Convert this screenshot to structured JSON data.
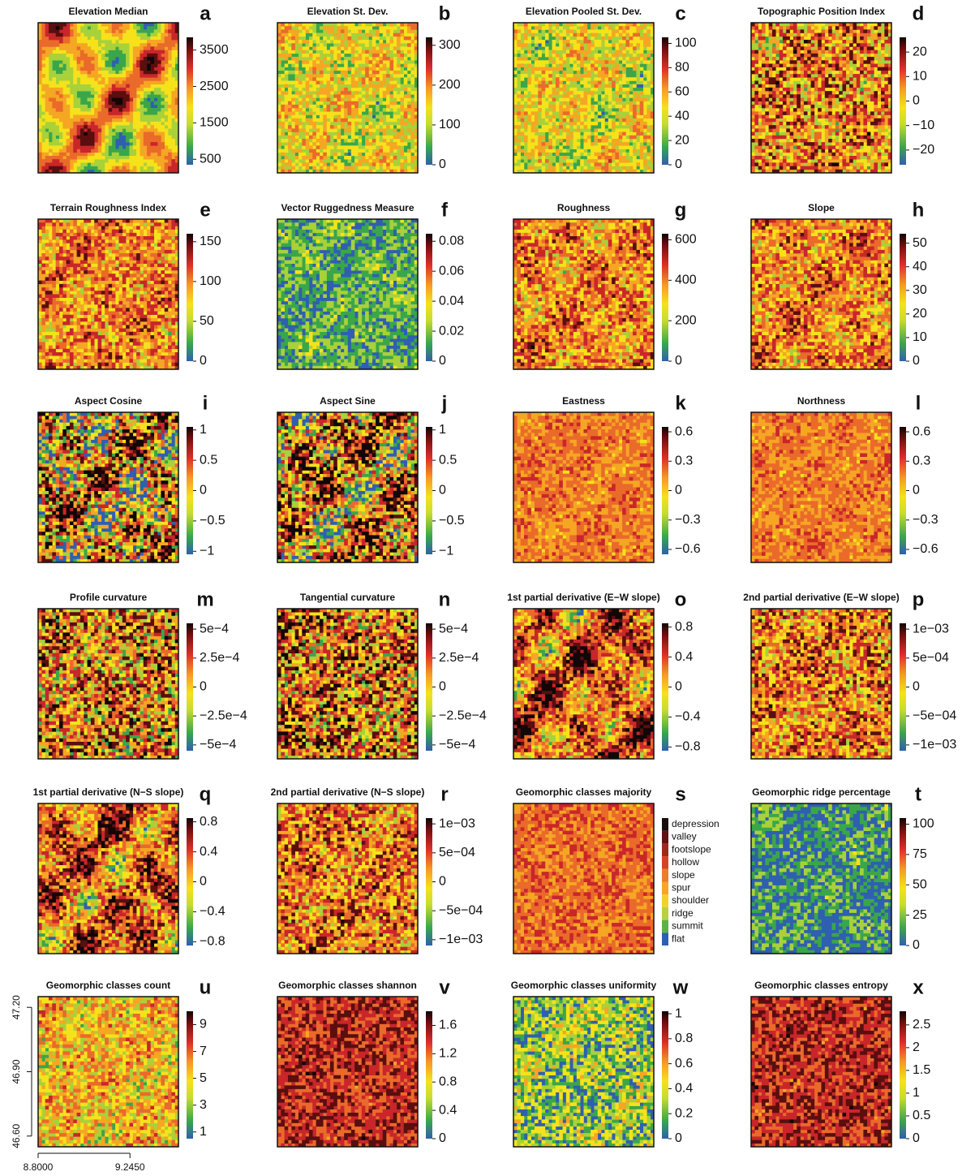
{
  "panels": [
    {
      "title": "Elevation Median",
      "letter": "a",
      "colorbar": {
        "lim": [
          350,
          3850
        ],
        "ticks": [
          500,
          1500,
          2500,
          3500
        ]
      }
    },
    {
      "title": "Elevation St. Dev.",
      "letter": "b",
      "colorbar": {
        "lim": [
          0,
          320
        ],
        "ticks": [
          0,
          100,
          200,
          300
        ]
      }
    },
    {
      "title": "Elevation Pooled St. Dev.",
      "letter": "c",
      "colorbar": {
        "lim": [
          0,
          105
        ],
        "ticks": [
          0,
          20,
          40,
          60,
          80,
          100
        ]
      }
    },
    {
      "title": "Topographic Position Index",
      "letter": "d",
      "colorbar": {
        "lim": [
          -26,
          26
        ],
        "ticks": [
          {
            "value": -20,
            "label": "−20"
          },
          {
            "value": -10,
            "label": "−10"
          },
          0,
          10,
          20
        ]
      }
    },
    {
      "title": "Terrain Roughness Index",
      "letter": "e",
      "colorbar": {
        "lim": [
          0,
          160
        ],
        "ticks": [
          0,
          50,
          100,
          150
        ]
      }
    },
    {
      "title": "Vector Ruggedness Measure",
      "letter": "f",
      "colorbar": {
        "lim": [
          0,
          0.085
        ],
        "ticks": [
          0,
          0.02,
          0.04,
          0.06,
          0.08
        ]
      }
    },
    {
      "title": "Roughness",
      "letter": "g",
      "colorbar": {
        "lim": [
          0,
          630
        ],
        "ticks": [
          0,
          200,
          400,
          600
        ]
      }
    },
    {
      "title": "Slope",
      "letter": "h",
      "colorbar": {
        "lim": [
          0,
          54
        ],
        "ticks": [
          0,
          10,
          20,
          30,
          40,
          50
        ]
      }
    },
    {
      "title": "Aspect Cosine",
      "letter": "i",
      "colorbar": {
        "lim": [
          -1.05,
          1.05
        ],
        "ticks": [
          {
            "value": -1,
            "label": "−1"
          },
          {
            "value": -0.5,
            "label": "−0.5"
          },
          0,
          0.5,
          1
        ]
      }
    },
    {
      "title": "Aspect Sine",
      "letter": "j",
      "colorbar": {
        "lim": [
          -1.05,
          1.05
        ],
        "ticks": [
          {
            "value": -1,
            "label": "−1"
          },
          {
            "value": -0.5,
            "label": "−0.5"
          },
          0,
          0.5,
          1
        ]
      }
    },
    {
      "title": "Eastness",
      "letter": "k",
      "colorbar": {
        "lim": [
          -0.65,
          0.65
        ],
        "ticks": [
          {
            "value": -0.6,
            "label": "−0.6"
          },
          {
            "value": -0.3,
            "label": "−0.3"
          },
          0,
          0.3,
          0.6
        ]
      }
    },
    {
      "title": "Northness",
      "letter": "l",
      "colorbar": {
        "lim": [
          -0.65,
          0.65
        ],
        "ticks": [
          {
            "value": -0.6,
            "label": "−0.6"
          },
          {
            "value": -0.3,
            "label": "−0.3"
          },
          0,
          0.3,
          0.6
        ]
      }
    },
    {
      "title": "Profile curvature",
      "letter": "m",
      "colorbar": {
        "lim": [
          -0.00055,
          0.00055
        ],
        "ticks": [
          {
            "value": -0.0005,
            "label": "−5e−4"
          },
          {
            "value": -0.00025,
            "label": "−2.5e−4"
          },
          0,
          {
            "value": 0.00025,
            "label": "2.5e−4"
          },
          {
            "value": 0.0005,
            "label": "5e−4"
          }
        ]
      }
    },
    {
      "title": "Tangential curvature",
      "letter": "n",
      "colorbar": {
        "lim": [
          -0.00055,
          0.00055
        ],
        "ticks": [
          {
            "value": -0.0005,
            "label": "−5e−4"
          },
          {
            "value": -0.00025,
            "label": "−2.5e−4"
          },
          0,
          {
            "value": 0.00025,
            "label": "2.5e−4"
          },
          {
            "value": 0.0005,
            "label": "5e−4"
          }
        ]
      }
    },
    {
      "title": "1st partial derivative (E−W slope)",
      "letter": "o",
      "colorbar": {
        "lim": [
          -0.85,
          0.85
        ],
        "ticks": [
          {
            "value": -0.8,
            "label": "−0.8"
          },
          {
            "value": -0.4,
            "label": "−0.4"
          },
          0,
          0.4,
          0.8
        ]
      }
    },
    {
      "title": "2nd partial derivative (E−W slope)",
      "letter": "p",
      "colorbar": {
        "lim": [
          -0.0011,
          0.0011
        ],
        "ticks": [
          {
            "value": -0.001,
            "label": "−1e−03"
          },
          {
            "value": -0.0005,
            "label": "−5e−04"
          },
          0,
          {
            "value": 0.0005,
            "label": "5e−04"
          },
          {
            "value": 0.001,
            "label": "1e−03"
          }
        ]
      }
    },
    {
      "title": "1st partial derivative (N−S slope)",
      "letter": "q",
      "colorbar": {
        "lim": [
          -0.85,
          0.85
        ],
        "ticks": [
          {
            "value": -0.8,
            "label": "−0.8"
          },
          {
            "value": -0.4,
            "label": "−0.4"
          },
          0,
          0.4,
          0.8
        ]
      }
    },
    {
      "title": "2nd partial derivative (N−S slope)",
      "letter": "r",
      "colorbar": {
        "lim": [
          -0.0011,
          0.0011
        ],
        "ticks": [
          {
            "value": -0.001,
            "label": "−1e−03"
          },
          {
            "value": -0.0005,
            "label": "−5e−04"
          },
          0,
          {
            "value": 0.0005,
            "label": "5e−04"
          },
          {
            "value": 0.001,
            "label": "1e−03"
          }
        ]
      }
    },
    {
      "title": "Geomorphic classes majority",
      "letter": "s",
      "legend": {
        "classes": [
          "depression",
          "valley",
          "footslope",
          "hollow",
          "slope",
          "spur",
          "shoulder",
          "ridge",
          "summit",
          "flat"
        ],
        "colors": [
          "#1a0a0a",
          "#5e1414",
          "#9c2a1e",
          "#d9402a",
          "#ef7a2a",
          "#f5a623",
          "#f2d22a",
          "#b9d23a",
          "#5fb04a",
          "#2f5fb0"
        ]
      }
    },
    {
      "title": "Geomorphic ridge percentage",
      "letter": "t",
      "colorbar": {
        "lim": [
          0,
          105
        ],
        "ticks": [
          0,
          25,
          50,
          75,
          100
        ]
      }
    },
    {
      "title": "Geomorphic classes count",
      "letter": "u",
      "colorbar": {
        "lim": [
          0.5,
          10
        ],
        "ticks": [
          1,
          3,
          5,
          7,
          9
        ]
      },
      "axes": {
        "xlim": [
          8.8,
          9.48
        ],
        "xticks": [
          {
            "value": 8.8,
            "label": "8.8000"
          },
          {
            "value": 9.245,
            "label": "9.2450"
          }
        ],
        "ylim": [
          46.55,
          47.25
        ],
        "yticks": [
          {
            "value": 47.2,
            "label": "47.20"
          },
          {
            "value": 46.9,
            "label": "46.90"
          },
          {
            "value": 46.6,
            "label": "46.60"
          }
        ]
      }
    },
    {
      "title": "Geomorphic classes shannon",
      "letter": "v",
      "colorbar": {
        "lim": [
          0,
          1.8
        ],
        "ticks": [
          0,
          0.4,
          0.8,
          1.2,
          1.6
        ]
      }
    },
    {
      "title": "Geomorphic classes uniformity",
      "letter": "w",
      "colorbar": {
        "lim": [
          0,
          1.02
        ],
        "ticks": [
          0,
          0.2,
          0.4,
          0.6,
          0.8,
          1
        ]
      }
    },
    {
      "title": "Geomorphic classes entropy",
      "letter": "x",
      "colorbar": {
        "lim": [
          0,
          2.8
        ],
        "ticks": [
          0,
          0.5,
          1,
          1.5,
          2,
          2.5
        ]
      }
    }
  ]
}
